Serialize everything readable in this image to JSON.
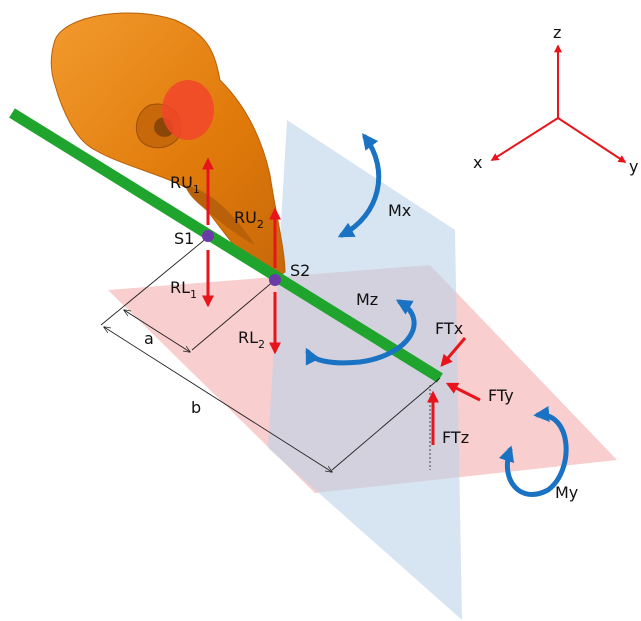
{
  "labels": {
    "ru1": "RU",
    "ru1_sub": "1",
    "ru2": "RU",
    "ru2_sub": "2",
    "rl1": "RL",
    "rl1_sub": "1",
    "rl2": "RL",
    "rl2_sub": "2",
    "s1": "S1",
    "s2": "S2",
    "a": "a",
    "b": "b",
    "mx": "Mx",
    "my": "My",
    "mz": "Mz",
    "ftx": "FTx",
    "fty": "FTy",
    "ftz": "FTz",
    "axis_x": "x",
    "axis_y": "y",
    "axis_z": "z"
  },
  "colors": {
    "skull": "#e8820c",
    "skull_dark": "#b8600a",
    "rod": "#1fa52e",
    "force_arrow": "#e8141c",
    "moment_arrow": "#1a73c2",
    "plane_horizontal": "#f7c6c6",
    "plane_vertical": "#bcd3e9",
    "point": "#6a3aa6",
    "red_patch": "#f2452a"
  }
}
